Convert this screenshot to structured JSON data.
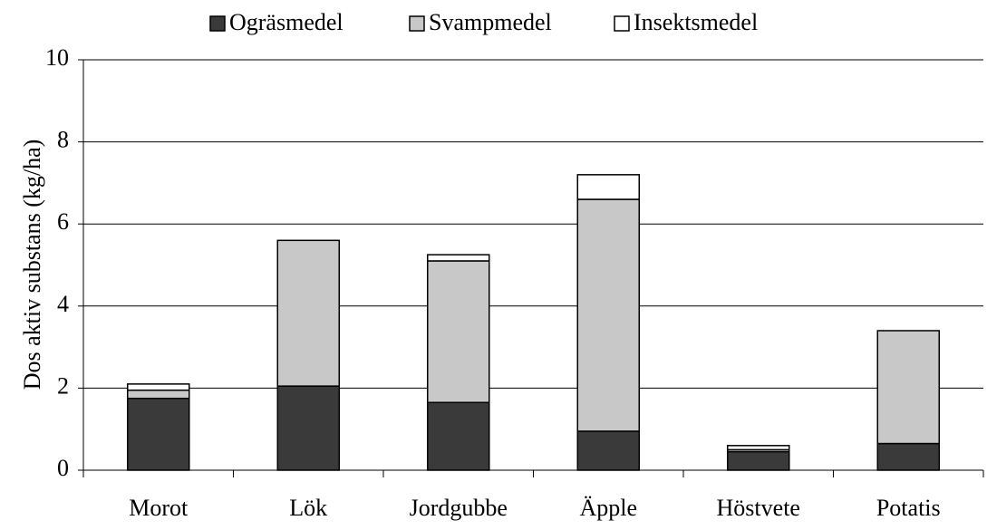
{
  "chart_data": {
    "type": "stacked_bar",
    "y_label": "Dos aktiv substans (kg/ha)",
    "categories": [
      "Morot",
      "Lök",
      "Jordgubbe",
      "Äpple",
      "Höstvete",
      "Potatis"
    ],
    "series": [
      {
        "name": "Ogräsmedel",
        "color": "#3a3a3a",
        "values": [
          1.75,
          2.05,
          1.65,
          0.95,
          0.45,
          0.65
        ]
      },
      {
        "name": "Svampmedel",
        "color": "#c8c8c8",
        "values": [
          0.2,
          3.55,
          3.45,
          5.65,
          0.05,
          2.75
        ]
      },
      {
        "name": "Insektsmedel",
        "color": "#ffffff",
        "values": [
          0.15,
          0,
          0.15,
          0.6,
          0.1,
          0
        ]
      }
    ],
    "ylim": [
      0,
      10
    ],
    "yticks": [
      0,
      2,
      4,
      6,
      8,
      10
    ],
    "grid": true,
    "legend": "top"
  }
}
